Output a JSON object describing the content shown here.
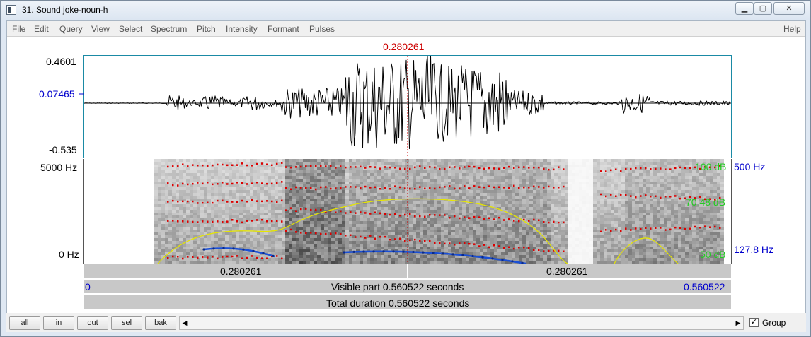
{
  "window": {
    "title": "31. Sound joke-noun-h",
    "min_glyph": "▁",
    "max_glyph": "▢",
    "close_glyph": "✕"
  },
  "menu": {
    "items": [
      "File",
      "Edit",
      "Query",
      "View",
      "Select",
      "Spectrum",
      "Pitch",
      "Intensity",
      "Formant",
      "Pulses"
    ],
    "help": "Help"
  },
  "cursor": {
    "time": "0.280261"
  },
  "waveform": {
    "ymax": "0.4601",
    "ycursor": "0.07465",
    "ymin": "-0.535"
  },
  "spectrogram": {
    "freq_top": "5000 Hz",
    "freq_bottom": "0 Hz",
    "db_top": "100 dB",
    "db_mid": "70.48 dB",
    "db_bottom": "50 dB",
    "pitch_top": "500 Hz",
    "pitch_value": "127.8 Hz"
  },
  "timebars": {
    "left_half": "0.280261",
    "right_half": "0.280261",
    "visible_start": "0",
    "visible_label": "Visible part 0.560522 seconds",
    "visible_end": "0.560522",
    "total_label": "Total duration 0.560522 seconds"
  },
  "zoom": {
    "all": "all",
    "in": "in",
    "out": "out",
    "sel": "sel",
    "bak": "bak"
  },
  "scroll": {
    "left_arrow": "◀",
    "right_arrow": "▶"
  },
  "group": {
    "label": "Group",
    "checked_glyph": "✓"
  },
  "colors": {
    "cursor": "#cc0000",
    "blue_label": "#0000cc",
    "green_label": "#22cc22",
    "formant": "#dd0000",
    "pitch": "#1a4fd6",
    "intensity": "#e6e600"
  }
}
